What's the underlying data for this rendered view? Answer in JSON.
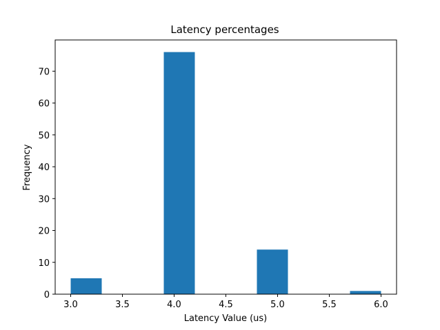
{
  "chart_data": {
    "type": "bar",
    "title": "Latency percentages",
    "xlabel": "Latency Value (us)",
    "ylabel": "Frequency",
    "xlim": [
      2.85,
      6.15
    ],
    "ylim": [
      0,
      79.8
    ],
    "x_ticks": [
      3.0,
      3.5,
      4.0,
      4.5,
      5.0,
      5.5,
      6.0
    ],
    "x_tick_labels": [
      "3.0",
      "3.5",
      "4.0",
      "4.5",
      "5.0",
      "5.5",
      "6.0"
    ],
    "y_ticks": [
      0,
      10,
      20,
      30,
      40,
      50,
      60,
      70
    ],
    "y_tick_labels": [
      "0",
      "10",
      "20",
      "30",
      "40",
      "50",
      "60",
      "70"
    ],
    "bins": [
      {
        "x0": 3.0,
        "x1": 3.3,
        "value": 5
      },
      {
        "x0": 3.9,
        "x1": 4.2,
        "value": 76
      },
      {
        "x0": 4.8,
        "x1": 5.1,
        "value": 14
      },
      {
        "x0": 5.7,
        "x1": 6.0,
        "value": 1
      }
    ],
    "bar_color": "#1f77b4",
    "grid": false,
    "legend": "none"
  }
}
